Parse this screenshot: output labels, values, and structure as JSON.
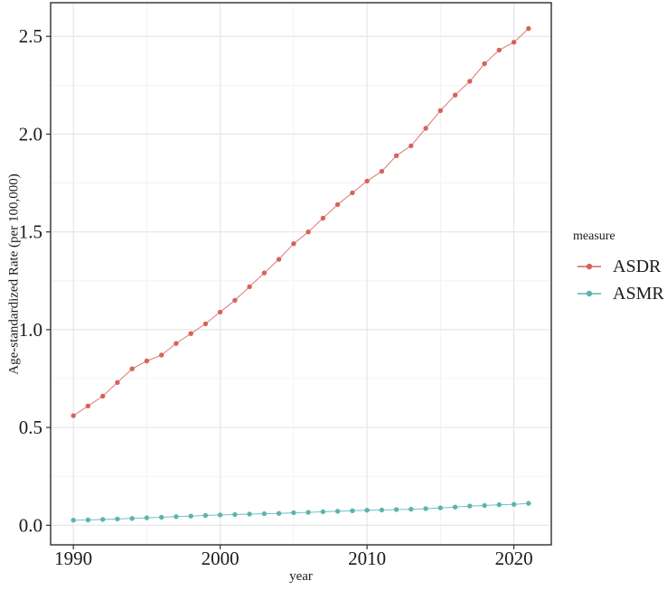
{
  "chart_data": {
    "type": "line",
    "title": "",
    "xlabel": "year",
    "ylabel": "Age-standardized Rate (per 100,000)",
    "x": [
      1990,
      1991,
      1992,
      1993,
      1994,
      1995,
      1996,
      1997,
      1998,
      1999,
      2000,
      2001,
      2002,
      2003,
      2004,
      2005,
      2006,
      2007,
      2008,
      2009,
      2010,
      2011,
      2012,
      2013,
      2014,
      2015,
      2016,
      2017,
      2018,
      2019,
      2020,
      2021
    ],
    "series": [
      {
        "name": "ASDR",
        "color": "#d6635a",
        "values": [
          0.56,
          0.61,
          0.66,
          0.73,
          0.8,
          0.84,
          0.87,
          0.93,
          0.98,
          1.03,
          1.09,
          1.15,
          1.22,
          1.29,
          1.36,
          1.44,
          1.5,
          1.57,
          1.64,
          1.7,
          1.76,
          1.81,
          1.89,
          1.94,
          2.03,
          2.12,
          2.2,
          2.27,
          2.36,
          2.43,
          2.47,
          2.54
        ]
      },
      {
        "name": "ASMR",
        "color": "#5bb5af",
        "values": [
          0.026,
          0.027,
          0.03,
          0.032,
          0.035,
          0.038,
          0.041,
          0.044,
          0.047,
          0.05,
          0.053,
          0.055,
          0.057,
          0.059,
          0.061,
          0.064,
          0.066,
          0.069,
          0.072,
          0.074,
          0.077,
          0.078,
          0.08,
          0.082,
          0.085,
          0.089,
          0.093,
          0.098,
          0.101,
          0.105,
          0.107,
          0.112
        ]
      }
    ],
    "xlim": [
      1988.45,
      2022.55
    ],
    "ylim": [
      -0.1,
      2.672
    ],
    "x_ticks": [
      {
        "v": 1990,
        "label": "1990"
      },
      {
        "v": 2000,
        "label": "2000"
      },
      {
        "v": 2010,
        "label": "2010"
      },
      {
        "v": 2020,
        "label": "2020"
      }
    ],
    "y_ticks": [
      {
        "v": 0.0,
        "label": "0.0"
      },
      {
        "v": 0.5,
        "label": "0.5"
      },
      {
        "v": 1.0,
        "label": "1.0"
      },
      {
        "v": 1.5,
        "label": "1.5"
      },
      {
        "v": 2.0,
        "label": "2.0"
      },
      {
        "v": 2.5,
        "label": "2.5"
      }
    ],
    "x_minor": [
      1995,
      2005,
      2015
    ],
    "y_minor": [
      0.25,
      0.75,
      1.25,
      1.75,
      2.25
    ],
    "legend": {
      "title": "measure",
      "position": "right",
      "entries": [
        "ASDR",
        "ASMR"
      ]
    },
    "grid": true,
    "colors": {
      "panel_border": "#2e2e2e",
      "grid_major": "#e4e4e4",
      "grid_minor": "#f0f0f0",
      "tick": "#333333",
      "text": "#1a1a1a",
      "background": "#ffffff"
    }
  }
}
